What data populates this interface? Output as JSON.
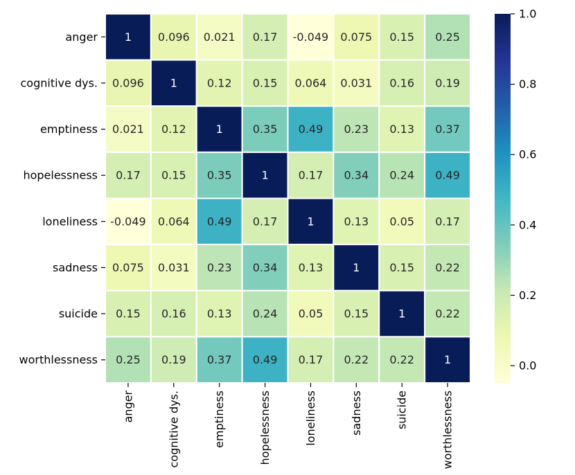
{
  "chart_data": {
    "type": "heatmap",
    "title": "",
    "xlabel": "",
    "ylabel": "",
    "x_categories": [
      "anger",
      "cognitive dys.",
      "emptiness",
      "hopelessness",
      "loneliness",
      "sadness",
      "suicide",
      "worthlessness"
    ],
    "y_categories": [
      "anger",
      "cognitive dys.",
      "emptiness",
      "hopelessness",
      "loneliness",
      "sadness",
      "suicide",
      "worthlessness"
    ],
    "values": [
      [
        1,
        0.096,
        0.021,
        0.17,
        -0.049,
        0.075,
        0.15,
        0.25
      ],
      [
        0.096,
        1,
        0.12,
        0.15,
        0.064,
        0.031,
        0.16,
        0.19
      ],
      [
        0.021,
        0.12,
        1,
        0.35,
        0.49,
        0.23,
        0.13,
        0.37
      ],
      [
        0.17,
        0.15,
        0.35,
        1,
        0.17,
        0.34,
        0.24,
        0.49
      ],
      [
        -0.049,
        0.064,
        0.49,
        0.17,
        1,
        0.13,
        0.05,
        0.17
      ],
      [
        0.075,
        0.031,
        0.23,
        0.34,
        0.13,
        1,
        0.15,
        0.22
      ],
      [
        0.15,
        0.16,
        0.13,
        0.24,
        0.05,
        0.15,
        1,
        0.22
      ],
      [
        0.25,
        0.19,
        0.37,
        0.49,
        0.17,
        0.22,
        0.22,
        1
      ]
    ],
    "labels": [
      [
        "1",
        "0.096",
        "0.021",
        "0.17",
        "-0.049",
        "0.075",
        "0.15",
        "0.25"
      ],
      [
        "0.096",
        "1",
        "0.12",
        "0.15",
        "0.064",
        "0.031",
        "0.16",
        "0.19"
      ],
      [
        "0.021",
        "0.12",
        "1",
        "0.35",
        "0.49",
        "0.23",
        "0.13",
        "0.37"
      ],
      [
        "0.17",
        "0.15",
        "0.35",
        "1",
        "0.17",
        "0.34",
        "0.24",
        "0.49"
      ],
      [
        "-0.049",
        "0.064",
        "0.49",
        "0.17",
        "1",
        "0.13",
        "0.05",
        "0.17"
      ],
      [
        "0.075",
        "0.031",
        "0.23",
        "0.34",
        "0.13",
        "1",
        "0.15",
        "0.22"
      ],
      [
        "0.15",
        "0.16",
        "0.13",
        "0.24",
        "0.05",
        "0.15",
        "1",
        "0.22"
      ],
      [
        "0.25",
        "0.19",
        "0.37",
        "0.49",
        "0.17",
        "0.22",
        "0.22",
        "1"
      ]
    ],
    "colormap": "YlGnBu",
    "colormap_stops": [
      "#ffffd9",
      "#edf8b1",
      "#c7e9b4",
      "#7fcdbb",
      "#41b6c4",
      "#1d91c0",
      "#225ea8",
      "#253494",
      "#081d58"
    ],
    "vmin": -0.049,
    "vmax": 1.0,
    "colorbar": {
      "ticks": [
        0.0,
        0.2,
        0.4,
        0.6,
        0.8,
        1.0
      ],
      "tick_labels": [
        "0.0",
        "0.2",
        "0.4",
        "0.6",
        "0.8",
        "1.0"
      ]
    },
    "cell_border_color": "#ffffff",
    "dark_text_color": "#262626",
    "light_text_color": "#ffffff"
  }
}
